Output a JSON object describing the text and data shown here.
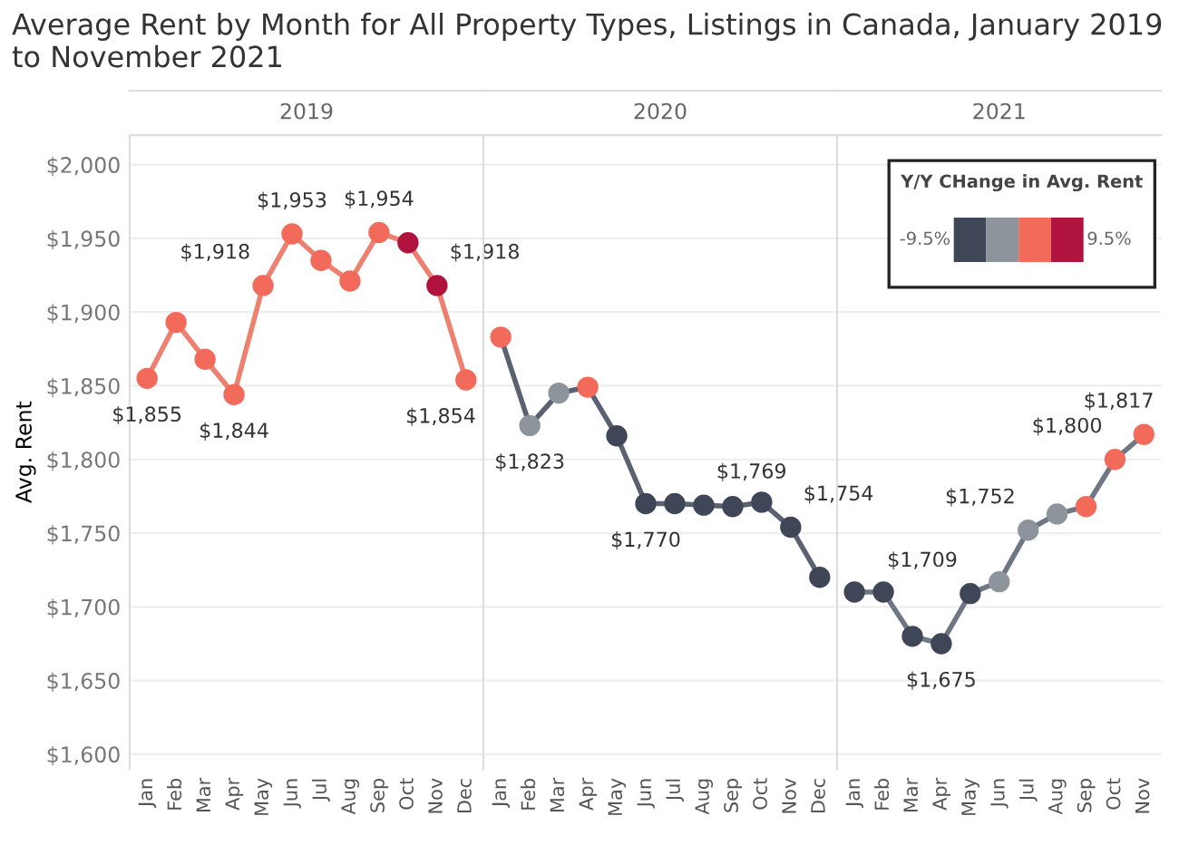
{
  "chart_data": [
    {
      "type": "line",
      "title": "Average Rent by Month for All Property Types, Listings in Canada, January 2019 to November 2021",
      "subtitle": "2019",
      "ylabel": "Avg. Rent",
      "categories": [
        "Jan",
        "Feb",
        "Mar",
        "Apr",
        "May",
        "Jun",
        "Jul",
        "Aug",
        "Sep",
        "Oct",
        "Nov",
        "Dec"
      ],
      "series": [
        {
          "color": "#ee8070",
          "values": [
            1855,
            1893,
            1868,
            1844,
            1918,
            1953,
            1935,
            1921,
            1954,
            1947,
            1918,
            1854
          ],
          "colors": [
            "#f26a5a",
            "#f26a5a",
            "#f26a5a",
            "#f26a5a",
            "#f26a5a",
            "#f26a5a",
            "#f26a5a",
            "#f26a5a",
            "#f26a5a",
            "#b0143e",
            "#b0143e",
            "#f26a5a"
          ],
          "value_labels": [
            "$1,855",
            null,
            null,
            "$1,844",
            "$1,918",
            "$1,953",
            null,
            null,
            "$1,954",
            null,
            "$1,918",
            "$1,854"
          ]
        }
      ],
      "ylim": [
        1590,
        2020
      ],
      "yticks": [
        {
          "value": 1600,
          "label": "$1,600"
        },
        {
          "value": 1650,
          "label": "$1,650"
        },
        {
          "value": 1700,
          "label": "$1,700"
        },
        {
          "value": 1750,
          "label": "$1,750"
        },
        {
          "value": 1800,
          "label": "$1,800"
        },
        {
          "value": 1850,
          "label": "$1,850"
        },
        {
          "value": 1900,
          "label": "$1,900"
        },
        {
          "value": 1950,
          "label": "$1,950"
        },
        {
          "value": 2000,
          "label": "$2,000"
        }
      ],
      "grid": "y",
      "marker": "circle",
      "tick_labels": true
    },
    {
      "type": "line",
      "subtitle": "2020",
      "categories": [
        "Jan",
        "Feb",
        "Mar",
        "Apr",
        "May",
        "Jun",
        "Jul",
        "Aug",
        "Sep",
        "Oct",
        "Nov",
        "Dec"
      ],
      "series": [
        {
          "color": "#5a6170",
          "values": [
            1883,
            1823,
            1845,
            1849,
            1816,
            1770,
            1770,
            1769,
            1768,
            1771,
            1754,
            1720
          ],
          "colors": [
            "#f26a5a",
            "#8d949b",
            "#8d949b",
            "#f26a5a",
            "#3e4657",
            "#3e4657",
            "#3e4657",
            "#3e4657",
            "#3e4657",
            "#3e4657",
            "#3e4657",
            "#3e4657"
          ],
          "value_labels": [
            null,
            "$1,823",
            null,
            null,
            null,
            "$1,770",
            null,
            "$1,769",
            null,
            null,
            "$1,754",
            null
          ]
        }
      ],
      "ylim": [
        1590,
        2020
      ],
      "grid": "y",
      "marker": "circle",
      "tick_labels": "x"
    },
    {
      "type": "line",
      "subtitle": "2021",
      "categories": [
        "Jan",
        "Feb",
        "Mar",
        "Apr",
        "May",
        "Jun",
        "Jul",
        "Aug",
        "Sep",
        "Oct",
        "Nov"
      ],
      "series": [
        {
          "color": "#6f7785",
          "values": [
            1710,
            1710,
            1680,
            1675,
            1709,
            1717,
            1752,
            1763,
            1768,
            1800,
            1817
          ],
          "colors": [
            "#3e4657",
            "#3e4657",
            "#3e4657",
            "#3e4657",
            "#3e4657",
            "#8d949b",
            "#8d949b",
            "#8d949b",
            "#f26a5a",
            "#f26a5a",
            "#f26a5a"
          ],
          "value_labels": [
            null,
            null,
            null,
            "$1,675",
            "$1,709",
            null,
            "$1,752",
            null,
            null,
            "$1,800",
            "$1,817"
          ]
        }
      ],
      "ylim": [
        1590,
        2020
      ],
      "grid": "y",
      "marker": "circle",
      "tick_labels": "x",
      "legend_title": "Y/Y CHange in Avg. Rent",
      "annotations": [
        "-9.5%",
        "9.5%"
      ]
    }
  ]
}
